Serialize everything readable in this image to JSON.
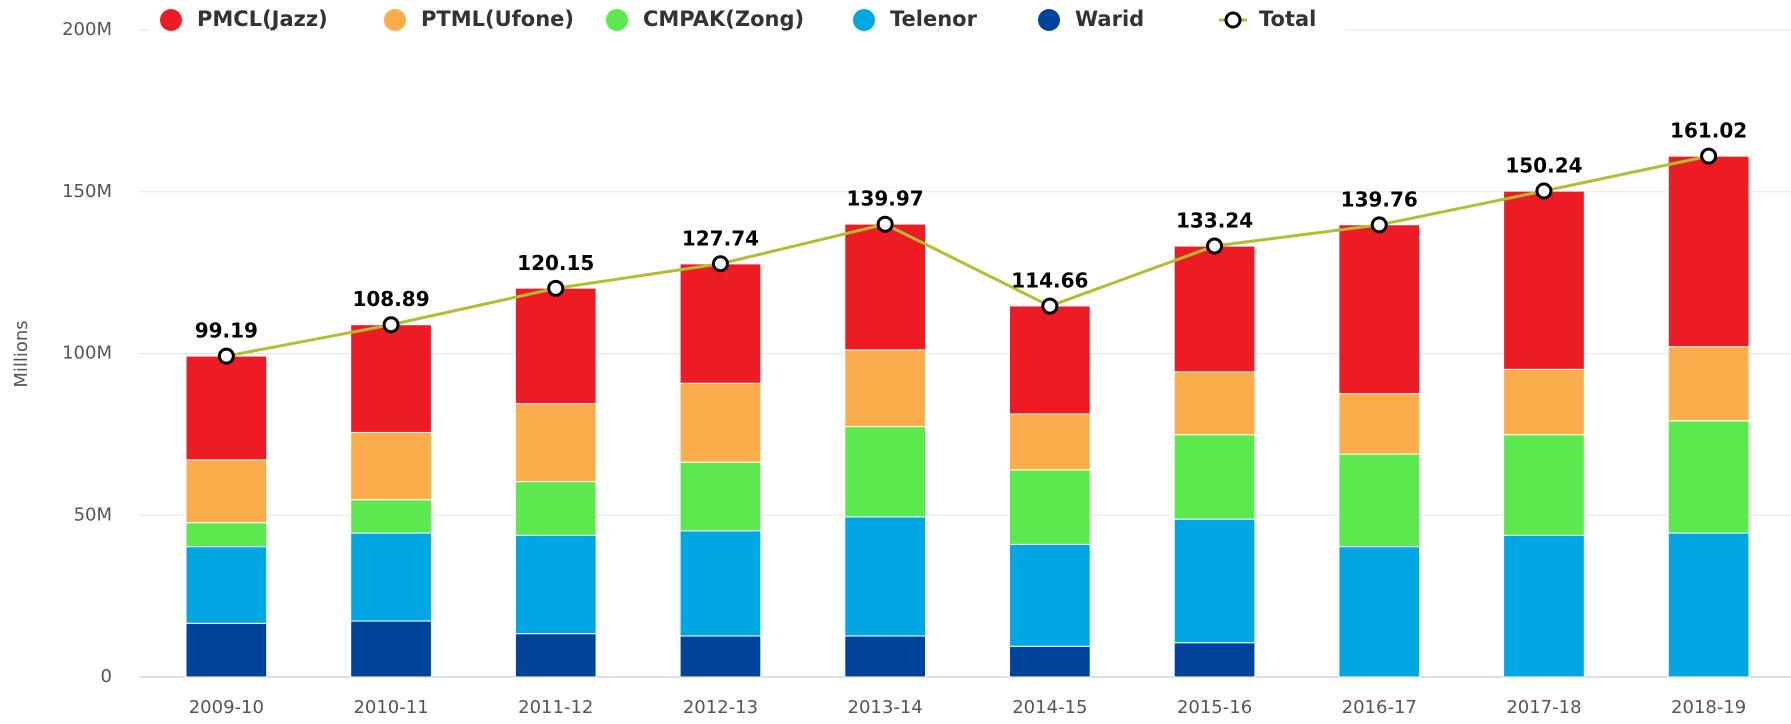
{
  "chart_data": {
    "type": "bar",
    "stacked": true,
    "y_label": "Millions",
    "categories": [
      "2009-10",
      "2010-11",
      "2011-12",
      "2012-13",
      "2013-14",
      "2014-15",
      "2015-16",
      "2016-17",
      "2017-18",
      "2018-19"
    ],
    "series": [
      {
        "name": "PMCL(Jazz)",
        "color": "#ed1c24",
        "values": [
          32.1,
          33.3,
          35.7,
          36.9,
          38.9,
          33.4,
          38.9,
          52.2,
          55.1,
          58.9
        ]
      },
      {
        "name": "PTML(Ufone)",
        "color": "#fbad4b",
        "values": [
          19.4,
          20.8,
          24.1,
          24.4,
          23.7,
          17.3,
          19.4,
          18.7,
          20.2,
          22.9
        ]
      },
      {
        "name": "CMPAK(Zong)",
        "color": "#5be94d",
        "values": [
          7.4,
          10.3,
          16.6,
          21.2,
          27.9,
          23,
          26.1,
          28.6,
          31.1,
          34.7
        ]
      },
      {
        "name": "Telenor",
        "color": "#00a7e3",
        "values": [
          23.7,
          27.2,
          30.4,
          32.5,
          36.8,
          31.5,
          38.2,
          40.3,
          43.8,
          44.5
        ]
      },
      {
        "name": "Warid",
        "color": "#00439b",
        "values": [
          16.6,
          17.3,
          13.4,
          12.7,
          12.7,
          9.5,
          10.6,
          null,
          null,
          null
        ]
      },
      {
        "name": "Total",
        "type": "line",
        "color": "#b5bd2f",
        "values": [
          99.19,
          108.89,
          120.15,
          127.74,
          139.97,
          114.66,
          133.24,
          139.76,
          150.24,
          161.02
        ]
      }
    ],
    "ylim": [
      0,
      200
    ],
    "yticks": [
      0,
      {
        "value": 50,
        "label": "50M"
      },
      {
        "value": 100,
        "label": "100M"
      },
      {
        "value": 150,
        "label": "150M"
      },
      {
        "value": 200,
        "label": "200M"
      }
    ],
    "grid": true,
    "legend": "top"
  }
}
